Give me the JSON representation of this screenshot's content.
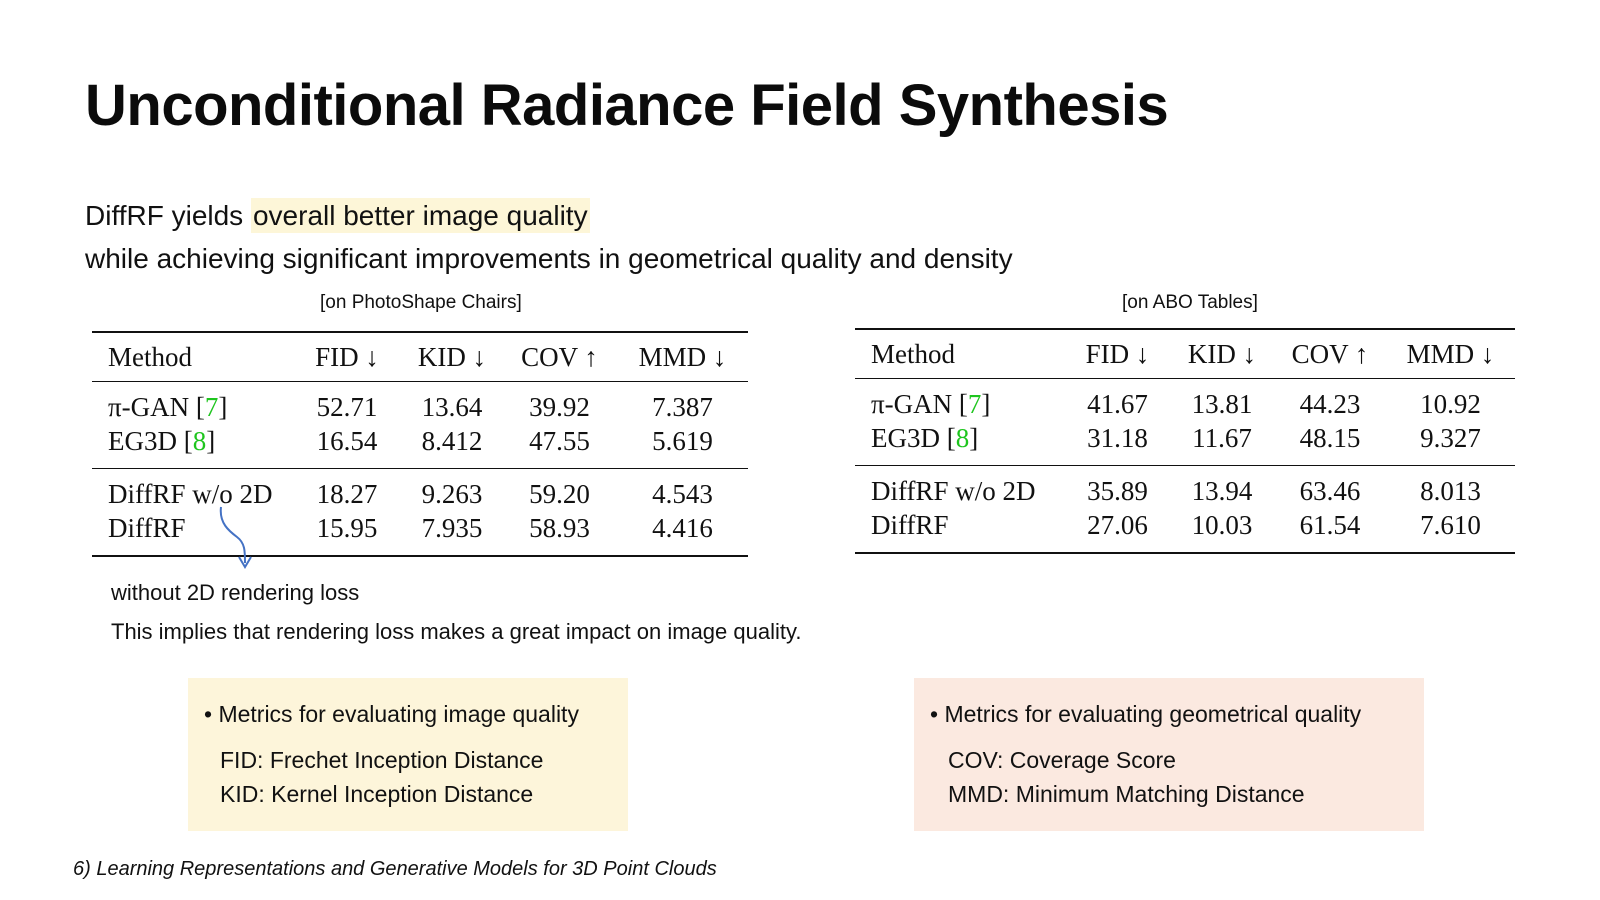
{
  "title": "Unconditional Radiance Field Synthesis",
  "subtitle": {
    "line1_prefix": "DiffRF yields ",
    "line1_highlight": "overall better image quality",
    "line2": "while achieving significant improvements in geometrical quality and density"
  },
  "tables": [
    {
      "caption": "[on PhotoShape Chairs]",
      "headers": [
        "Method",
        "FID ↓",
        "KID ↓",
        "COV ↑",
        "MMD ↓"
      ],
      "rows": [
        {
          "method": "π-GAN [",
          "ref": "7",
          "values": [
            "52.71",
            "13.64",
            "39.92",
            "7.387"
          ]
        },
        {
          "method": "EG3D [",
          "ref": "8",
          "values": [
            "16.54",
            "8.412",
            "47.55",
            "5.619"
          ]
        },
        {
          "method": "DiffRF w/o 2D",
          "values": [
            "18.27",
            "9.263",
            "59.20",
            "4.543"
          ]
        },
        {
          "method": "DiffRF",
          "values": [
            "15.95",
            "7.935",
            "58.93",
            "4.416"
          ]
        }
      ]
    },
    {
      "caption": "[on ABO Tables]",
      "headers": [
        "Method",
        "FID ↓",
        "KID ↓",
        "COV ↑",
        "MMD ↓"
      ],
      "rows": [
        {
          "method": "π-GAN [",
          "ref": "7",
          "values": [
            "41.67",
            "13.81",
            "44.23",
            "10.92"
          ]
        },
        {
          "method": "EG3D [",
          "ref": "8",
          "values": [
            "31.18",
            "11.67",
            "48.15",
            "9.327"
          ]
        },
        {
          "method": "DiffRF w/o 2D",
          "values": [
            "35.89",
            "13.94",
            "63.46",
            "8.013"
          ]
        },
        {
          "method": "DiffRF",
          "values": [
            "27.06",
            "10.03",
            "61.54",
            "7.610"
          ]
        }
      ]
    }
  ],
  "notes": {
    "arrow_label": "without 2D rendering loss",
    "implication": "This implies that rendering loss makes a great impact on image quality."
  },
  "boxes": [
    {
      "heading": "• Metrics for evaluating image quality",
      "lines": [
        "FID: Frechet Inception Distance",
        "KID: Kernel Inception Distance"
      ],
      "color": "#fdf5da"
    },
    {
      "heading": "• Metrics for evaluating geometrical quality",
      "lines": [
        "COV: Coverage Score",
        "MMD: Minimum Matching Distance"
      ],
      "color": "#fbe9e0"
    }
  ],
  "footer": "6) Learning Representations and Generative Models for 3D Point Clouds",
  "colors": {
    "highlight": "#fdf6d8",
    "reference": "#1ec51e",
    "arrow": "#4472c4"
  }
}
